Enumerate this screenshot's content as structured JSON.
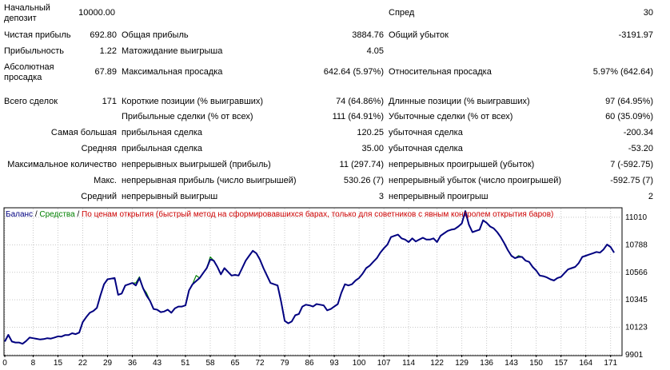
{
  "stats": {
    "deposit_label": "Начальный депозит",
    "deposit_value": "10000.00",
    "spread_label": "Спред",
    "spread_value": "30",
    "net_profit_label": "Чистая прибыль",
    "net_profit_value": "692.80",
    "gross_profit_label": "Общая прибыль",
    "gross_profit_value": "3884.76",
    "gross_loss_label": "Общий убыток",
    "gross_loss_value": "-3191.97",
    "profit_factor_label": "Прибыльность",
    "profit_factor_value": "1.22",
    "expected_payoff_label": "Матожидание выигрыша",
    "expected_payoff_value": "4.05",
    "abs_drawdown_label": "Абсолютная просадка",
    "abs_drawdown_value": "67.89",
    "max_drawdown_label": "Максимальная просадка",
    "max_drawdown_value": "642.64 (5.97%)",
    "rel_drawdown_label": "Относительная просадка",
    "rel_drawdown_value": "5.97% (642.64)",
    "total_trades_label": "Всего сделок",
    "total_trades_value": "171",
    "short_label": "Короткие позиции (% выигравших)",
    "short_value": "74 (64.86%)",
    "long_label": "Длинные позиции (% выигравших)",
    "long_value": "97 (64.95%)",
    "profit_trades_label": "Прибыльные сделки (% от всех)",
    "profit_trades_value": "111 (64.91%)",
    "loss_trades_label": "Убыточные сделки (% от всех)",
    "loss_trades_value": "60 (35.09%)",
    "largest_label": "Самая большая",
    "largest_profit_label": "прибыльная сделка",
    "largest_profit_value": "120.25",
    "largest_loss_label": "убыточная сделка",
    "largest_loss_value": "-200.34",
    "average_label": "Средняя",
    "average_profit_label": "прибыльная сделка",
    "average_profit_value": "35.00",
    "average_loss_label": "убыточная сделка",
    "average_loss_value": "-53.20",
    "max_count_label": "Максимальное количество",
    "max_cons_wins_label": "непрерывных выигрышей (прибыль)",
    "max_cons_wins_value": "11 (297.74)",
    "max_cons_losses_label": "непрерывных проигрышей (убыток)",
    "max_cons_losses_value": "7 (-592.75)",
    "max_label": "Макс.",
    "max_cons_profit_label": "непрерывная прибыль (число выигрышей)",
    "max_cons_profit_value": "530.26 (7)",
    "max_cons_loss_label": "непрерывный убыток (число проигрышей)",
    "max_cons_loss_value": "-592.75 (7)",
    "avg_label": "Средний",
    "avg_cons_wins_label": "непрерывный выигрыш",
    "avg_cons_wins_value": "3",
    "avg_cons_losses_label": "непрерывный проигрыш",
    "avg_cons_losses_value": "2"
  },
  "legend": {
    "balance": "Баланс",
    "sep1": " / ",
    "equity": "Средства",
    "sep2": " / ",
    "method": "По ценам открытия (быстрый метод на сформировавшихся барах, только для советников с явным контролем открытия баров)"
  },
  "colors": {
    "balance": "#000080",
    "equity": "#008000",
    "method": "#cc0000"
  },
  "chart_data": {
    "type": "line",
    "xlabel": "",
    "ylabel": "",
    "xlim": [
      0,
      174
    ],
    "ylim": [
      9901,
      11080
    ],
    "x_ticks": [
      0,
      8,
      15,
      22,
      29,
      36,
      43,
      51,
      58,
      65,
      72,
      79,
      86,
      93,
      100,
      107,
      114,
      122,
      129,
      136,
      143,
      150,
      157,
      164,
      171
    ],
    "y_ticks": [
      9901,
      10123,
      10345,
      10566,
      10788,
      11010
    ],
    "series": [
      {
        "name": "Баланс",
        "x": [
          0,
          1,
          2,
          3,
          4,
          5,
          6,
          7,
          8,
          9,
          10,
          11,
          12,
          13,
          14,
          15,
          16,
          17,
          18,
          19,
          20,
          21,
          22,
          23,
          24,
          25,
          26,
          27,
          28,
          29,
          30,
          31,
          32,
          33,
          34,
          35,
          36,
          37,
          38,
          39,
          40,
          41,
          42,
          43,
          44,
          45,
          46,
          47,
          48,
          49,
          50,
          51,
          52,
          53,
          54,
          55,
          56,
          57,
          58,
          59,
          60,
          61,
          62,
          63,
          64,
          65,
          66,
          67,
          68,
          69,
          70,
          71,
          72,
          73,
          74,
          75,
          76,
          77,
          78,
          79,
          80,
          81,
          82,
          83,
          84,
          85,
          86,
          87,
          88,
          89,
          90,
          91,
          92,
          93,
          94,
          95,
          96,
          97,
          98,
          99,
          100,
          101,
          102,
          103,
          104,
          105,
          106,
          107,
          108,
          109,
          110,
          111,
          112,
          113,
          114,
          115,
          116,
          117,
          118,
          119,
          120,
          121,
          122,
          123,
          124,
          125,
          126,
          127,
          128,
          129,
          130,
          131,
          132,
          133,
          134,
          135,
          136,
          137,
          138,
          139,
          140,
          141,
          142,
          143,
          144,
          145,
          146,
          147,
          148,
          149,
          150,
          151,
          152,
          153,
          154,
          155,
          156,
          157,
          158,
          159,
          160,
          161,
          162,
          163,
          164,
          165,
          166,
          167,
          168,
          169,
          170,
          171,
          172
        ],
        "values": [
          10008,
          10062,
          10008,
          10000,
          10000,
          9990,
          10012,
          10040,
          10035,
          10030,
          10025,
          10028,
          10035,
          10032,
          10040,
          10050,
          10048,
          10060,
          10060,
          10075,
          10068,
          10080,
          10165,
          10205,
          10240,
          10255,
          10280,
          10380,
          10470,
          10510,
          10515,
          10520,
          10385,
          10395,
          10460,
          10470,
          10480,
          10460,
          10520,
          10440,
          10380,
          10335,
          10270,
          10265,
          10245,
          10250,
          10265,
          10240,
          10275,
          10290,
          10290,
          10300,
          10420,
          10470,
          10495,
          10520,
          10560,
          10600,
          10670,
          10660,
          10610,
          10550,
          10600,
          10570,
          10540,
          10545,
          10540,
          10600,
          10660,
          10700,
          10740,
          10720,
          10670,
          10600,
          10540,
          10480,
          10470,
          10460,
          10330,
          10175,
          10155,
          10170,
          10220,
          10230,
          10290,
          10305,
          10300,
          10290,
          10310,
          10305,
          10300,
          10260,
          10270,
          10290,
          10310,
          10400,
          10470,
          10460,
          10470,
          10500,
          10520,
          10555,
          10600,
          10620,
          10650,
          10680,
          10725,
          10760,
          10790,
          10850,
          10860,
          10870,
          10840,
          10830,
          10810,
          10840,
          10815,
          10830,
          10845,
          10830,
          10830,
          10840,
          10810,
          10860,
          10880,
          10900,
          10910,
          10915,
          10935,
          10960,
          11060,
          10950,
          10890,
          10900,
          10910,
          10985,
          10965,
          10935,
          10920,
          10890,
          10850,
          10800,
          10745,
          10700,
          10680,
          10690,
          10690,
          10660,
          10650,
          10610,
          10580,
          10540,
          10535,
          10525,
          10510,
          10500,
          10520,
          10530,
          10560,
          10590,
          10600,
          10610,
          10640,
          10690,
          10700,
          10710,
          10720,
          10730,
          10725,
          10750,
          10790,
          10770,
          10725
        ]
      },
      {
        "name": "Средства",
        "x": [
          0,
          1,
          2,
          3,
          4,
          5,
          6,
          7,
          8,
          9,
          10,
          11,
          12,
          13,
          14,
          15,
          16,
          17,
          18,
          19,
          20,
          21,
          22,
          23,
          24,
          25,
          26,
          27,
          28,
          29,
          30,
          31,
          32,
          33,
          34,
          35,
          36,
          37,
          38,
          39,
          40,
          41,
          42,
          43,
          44,
          45,
          46,
          47,
          48,
          49,
          50,
          51,
          52,
          53,
          54,
          55,
          56,
          57,
          58,
          59,
          60,
          61,
          62,
          63,
          64,
          65,
          66,
          67,
          68,
          69,
          70,
          71,
          72,
          73,
          74,
          75,
          76,
          77,
          78,
          79,
          80,
          81,
          82,
          83,
          84,
          85,
          86,
          87,
          88,
          89,
          90,
          91,
          92,
          93,
          94,
          95,
          96,
          97,
          98,
          99,
          100,
          101,
          102,
          103,
          104,
          105,
          106,
          107,
          108,
          109,
          110,
          111,
          112,
          113,
          114,
          115,
          116,
          117,
          118,
          119,
          120,
          121,
          122,
          123,
          124,
          125,
          126,
          127,
          128,
          129,
          130,
          131,
          132,
          133,
          134,
          135,
          136,
          137,
          138,
          139,
          140,
          141,
          142,
          143,
          144,
          145,
          146,
          147,
          148,
          149,
          150,
          151,
          152,
          153,
          154,
          155,
          156,
          157,
          158,
          159,
          160,
          161,
          162,
          163,
          164,
          165,
          166,
          167,
          168,
          169,
          170,
          171,
          172
        ],
        "values": [
          10008,
          10062,
          10008,
          10000,
          10000,
          9990,
          10012,
          10040,
          10035,
          10030,
          10025,
          10028,
          10035,
          10032,
          10040,
          10050,
          10048,
          10060,
          10060,
          10075,
          10068,
          10080,
          10165,
          10205,
          10240,
          10255,
          10280,
          10380,
          10470,
          10510,
          10515,
          10520,
          10385,
          10395,
          10460,
          10470,
          10480,
          10480,
          10530,
          10440,
          10400,
          10335,
          10270,
          10265,
          10245,
          10250,
          10265,
          10240,
          10275,
          10290,
          10290,
          10300,
          10420,
          10470,
          10540,
          10520,
          10560,
          10600,
          10690,
          10660,
          10610,
          10550,
          10600,
          10570,
          10540,
          10545,
          10540,
          10600,
          10660,
          10700,
          10740,
          10720,
          10670,
          10600,
          10540,
          10480,
          10470,
          10460,
          10330,
          10175,
          10155,
          10170,
          10220,
          10230,
          10290,
          10305,
          10300,
          10290,
          10310,
          10305,
          10300,
          10260,
          10270,
          10290,
          10310,
          10400,
          10470,
          10460,
          10470,
          10500,
          10520,
          10555,
          10600,
          10620,
          10650,
          10680,
          10725,
          10760,
          10790,
          10850,
          10860,
          10870,
          10840,
          10830,
          10810,
          10840,
          10815,
          10830,
          10845,
          10830,
          10830,
          10840,
          10810,
          10860,
          10880,
          10900,
          10910,
          10915,
          10935,
          10960,
          11060,
          10950,
          10890,
          10900,
          10910,
          10985,
          10965,
          10935,
          10920,
          10890,
          10850,
          10800,
          10745,
          10700,
          10680,
          10700,
          10690,
          10660,
          10650,
          10610,
          10580,
          10540,
          10535,
          10525,
          10510,
          10500,
          10520,
          10530,
          10560,
          10590,
          10600,
          10610,
          10640,
          10690,
          10700,
          10710,
          10720,
          10730,
          10725,
          10750,
          10790,
          10770,
          10725
        ]
      }
    ]
  }
}
